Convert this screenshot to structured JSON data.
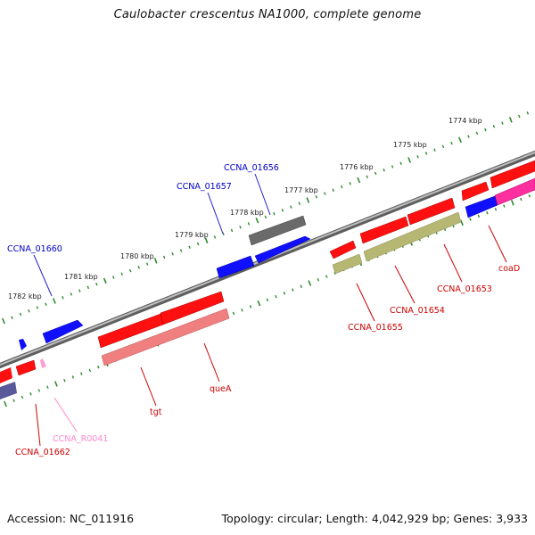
{
  "title": "Caulobacter crescentus NA1000, complete genome",
  "footer": {
    "accession": "Accession: NC_011916",
    "summary": "Topology: circular; Length: 4,042,929 bp; Genes: 3,933"
  },
  "colors": {
    "backbone": "#8a8a8a",
    "tick": "#2e8b2e",
    "cds": "#ff0000",
    "cds_light": "#f08080",
    "gene_blue": "#0000ff",
    "gene_gray": "#666666",
    "gene_olive": "#b5b573",
    "gene_magenta": "#ff2fa0",
    "gene_violet": "#5a5a9a",
    "rna_pink": "#ff9ed0"
  },
  "scale_labels": [
    "1774 kbp",
    "1775 kbp",
    "1776 kbp",
    "1777 kbp",
    "1778 kbp",
    "1779 kbp",
    "1780 kbp",
    "1781 kbp",
    "1782 kbp"
  ],
  "gene_labels": [
    {
      "id": "ccna-01656",
      "text": "CCNA_01656",
      "color": "#0000cc"
    },
    {
      "id": "ccna-01657",
      "text": "CCNA_01657",
      "color": "#0000cc"
    },
    {
      "id": "ccna-01660",
      "text": "CCNA_01660",
      "color": "#0000cc"
    },
    {
      "id": "ccna-01653",
      "text": "CCNA_01653",
      "color": "#cc0000"
    },
    {
      "id": "ccna-01654",
      "text": "CCNA_01654",
      "color": "#cc0000"
    },
    {
      "id": "ccna-01655",
      "text": "CCNA_01655",
      "color": "#cc0000"
    },
    {
      "id": "coad",
      "text": "coaD",
      "color": "#cc0000"
    },
    {
      "id": "quea",
      "text": "queA",
      "color": "#cc0000"
    },
    {
      "id": "tgt",
      "text": "tgt",
      "color": "#cc0000"
    },
    {
      "id": "ccna-r0041",
      "text": "CCNA_R0041",
      "color": "#ff88cc"
    },
    {
      "id": "ccna-01662",
      "text": "CCNA_01662",
      "color": "#cc0000"
    }
  ]
}
